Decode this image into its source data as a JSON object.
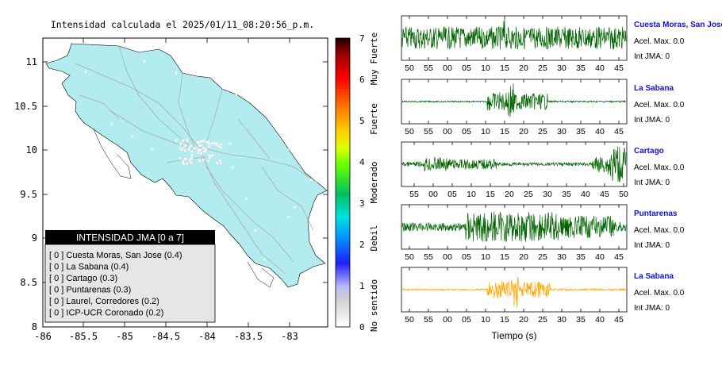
{
  "map": {
    "title": "Intensidad calculada el 2025/01/11_08:20:56_p.m.",
    "x_ticks": [
      "-86",
      "-85.5",
      "-85",
      "-84.5",
      "-84",
      "-83.5",
      "-83"
    ],
    "y_ticks": [
      "11",
      "10.5",
      "10",
      "9.5",
      "9",
      "8.5",
      "8"
    ],
    "land_color": "#b2ecee",
    "legend": {
      "title": "INTENSIDAD JMA [0 a 7]",
      "items": [
        "[ 0 ]  Cuesta Moras, San Jose (0.4)",
        "[ 0 ]  La Sabana (0.4)",
        "[ 0 ]  Cartago (0.3)",
        "[ 0 ]  Puntarenas (0.3)",
        "[ 0 ]  Laurel, Corredores (0.2)",
        "[ 0 ]  ICP-UCR Coronado (0.2)"
      ]
    }
  },
  "colorbar": {
    "ticks": [
      "7",
      "6",
      "5",
      "4",
      "3",
      "2",
      "1",
      "0"
    ],
    "labels": [
      "Muy Fuerte",
      "Fuerte",
      "Moderado",
      "Debil",
      "No sentido"
    ]
  },
  "waveforms": {
    "xlabel": "Tiempo (s)",
    "traces": [
      {
        "station": "Cuesta Moras, San Jose",
        "accel": "Acel. Max. 0.0",
        "int": "Int JMA: 0",
        "color": "#006400",
        "ticks": [
          "50",
          "55",
          "00",
          "05",
          "10",
          "15",
          "20",
          "25",
          "30",
          "35",
          "40",
          "45"
        ]
      },
      {
        "station": "La Sabana",
        "accel": "Acel. Max. 0.0",
        "int": "Int JMA: 0",
        "color": "#006400",
        "ticks": [
          "50",
          "55",
          "00",
          "05",
          "10",
          "15",
          "20",
          "25",
          "30",
          "35",
          "40",
          "45"
        ]
      },
      {
        "station": "Cartago",
        "accel": "Acel. Max. 0.0",
        "int": "Int JMA: 0",
        "color": "#006400",
        "ticks": [
          "55",
          "00",
          "05",
          "10",
          "15",
          "20",
          "25",
          "30",
          "35",
          "40",
          "45",
          "50"
        ]
      },
      {
        "station": "Puntarenas",
        "accel": "Acel. Max. 0.0",
        "int": "Int JMA: 0",
        "color": "#006400",
        "ticks": [
          "50",
          "55",
          "00",
          "05",
          "10",
          "15",
          "20",
          "25",
          "30",
          "35",
          "40",
          "45"
        ]
      },
      {
        "station": "La Sabana",
        "accel": "Acel. Max. 0.0",
        "int": "Int JMA: 0",
        "color": "#ffa500",
        "ticks": [
          "50",
          "55",
          "00",
          "05",
          "10",
          "15",
          "20",
          "25",
          "30",
          "35",
          "40",
          "45"
        ]
      }
    ]
  }
}
